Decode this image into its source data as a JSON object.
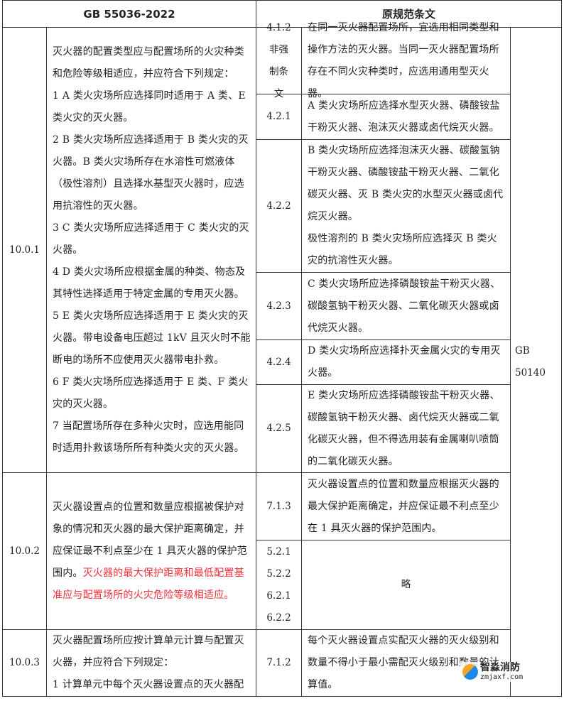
{
  "header": {
    "left": "GB 55036-2022",
    "right": "原规范条文"
  },
  "rows": [
    {
      "clause": "10.0.1",
      "text": [
        "灭火器的配置类型应与配置场所的火灾种类和危险等级相适应，并应符合下列规定：",
        "1 A 类火灾场所应选择同时适用于 A 类、E 类火灾的灭火器。",
        "2 B 类火灾场所应选择适用于 B 类火灾的灭火器。B 类火灾场所存在水溶性可燃液体（极性溶剂）且选择水基型灭火器时，应选用抗溶性的灭火器。",
        "3 C 类火灾场所应选择适用于 C 类火灾的灭火器。",
        "4 D 类火灾场所应根据金属的种类、物态及其特性选择适用于特定金属的专用灭火器。",
        "5 E 类火灾场所应选择适用于 E 类火灾的灭火器。带电设备电压超过 1kV 且灭火时不能断电的场所不应使用灭火器带电扑救。",
        "6 F 类火灾场所应选择适用于 E 类、F 类火灾的灭火器。",
        "7 当配置场所存在多种火灾时，应选用能同时适用扑救该场所所有种类火灾的灭火器。"
      ],
      "original": [
        {
          "num": "4.1.2 非强制条文",
          "text": [
            "在同一灭火器配置场所，宜选用相同类型和操作方法的灭火器。当同一灭火器配置场所存在不同火灾种类时，应选用通用型灭火器。"
          ]
        },
        {
          "num": "4.2.1",
          "text": [
            "A 类火灾场所应选择水型灭火器、磷酸铵盐干粉灭火器、泡沫灭火器或卤代烷灭火器。"
          ]
        },
        {
          "num": "4.2.2",
          "text": [
            "B 类火灾场所应选择泡沫灭火器、碳酸氢钠干粉灭火器、磷酸铵盐干粉灭火器、二氧化碳灭火器、灭 B 类火灾的水型灭火器或卤代烷灭火器。",
            "极性溶剂的 B 类火灾场所应选择灭 B 类火灾的抗溶性灭火器。"
          ]
        },
        {
          "num": "4.2.3",
          "text": [
            "C 类火灾场所应选择磷酸铵盐干粉灭火器、碳酸氢钠干粉灭火器、二氧化碳灭火器或卤代烷灭火器。"
          ]
        },
        {
          "num": "4.2.4",
          "text": [
            "D 类火灾场所应选择扑灭金属火灾的专用灭火器。"
          ]
        },
        {
          "num": "4.2.5",
          "text": [
            "E 类火灾场所应选择磷酸铵盐干粉灭火器、碳酸氢钠干粉灭火器、卤代烷灭火器或二氧化碳灭火器，但不得选用装有金属喇叭喷筒的二氧化碳灭火器。"
          ]
        }
      ]
    },
    {
      "clause": "10.0.2",
      "text_normal": "灭火器设置点的位置和数量应根据被保护对象的情况和灭火器的最大保护距离确定，并应保证最不利点至少在 1 具灭火器的保护范围内。",
      "text_red": "灭火器的最大保护距离和最低配置基准应与配置场所的火灾危险等级相适应。",
      "original": [
        {
          "num": "7.1.3",
          "text": [
            "灭火器设置点的位置和数量应根据灭火器的最大保护距离确定，并应保证最不利点至少在 1 具灭火器的保护范围内。"
          ]
        },
        {
          "nums": [
            "5.2.1",
            "5.2.2",
            "6.2.1",
            "6.2.2"
          ],
          "text": [
            "略"
          ]
        }
      ]
    },
    {
      "clause": "10.0.3",
      "text": [
        "灭火器配置场所应按计算单元计算与配置灭火器，并应符合下列规定：",
        "1 计算单元中每个灭火器设置点的灭火器配"
      ],
      "original": [
        {
          "num": "7.1.2",
          "text": [
            "每个灭火器设置点实配灭火器的灭火级别和数量不得小于最小需配灭火级别和数量的计算值。"
          ]
        }
      ]
    }
  ],
  "source_standard": "GB 50140",
  "logo": {
    "name": "智淼消防",
    "site": "zmjaxf.com"
  },
  "colors": {
    "highlight": "#f0303a",
    "border": "#333333"
  }
}
